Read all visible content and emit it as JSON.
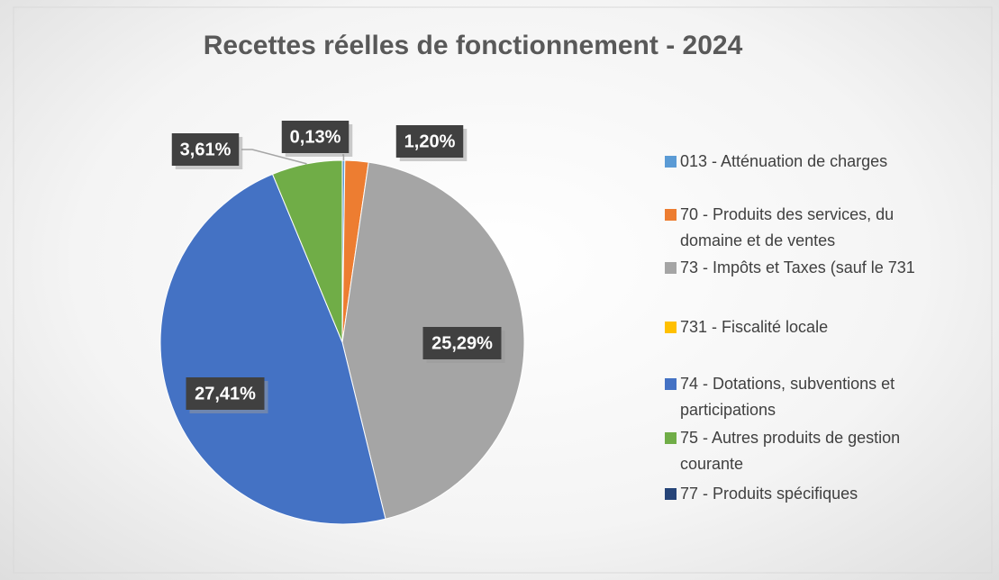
{
  "chart_data": {
    "type": "pie",
    "title": "Recettes réelles de fonctionnement - 2024",
    "categories": [
      "013 - Atténuation de charges",
      "70 - Produits des services, du domaine et de ventes",
      "73 - Impôts et Taxes (sauf le 731",
      "731 - Fiscalité locale",
      "74 - Dotations, subventions et participations",
      "75 - Autres produits de gestion courante",
      "77 - Produits spécifiques"
    ],
    "values": [
      0.13,
      1.2,
      25.29,
      null,
      27.41,
      3.61,
      null
    ],
    "value_labels": [
      "0,13%",
      "1,20%",
      "25,29%",
      null,
      "27,41%",
      "3,61%",
      null
    ],
    "colors": [
      "#5b9bd5",
      "#ed7d31",
      "#a5a5a5",
      "#ffc000",
      "#4472c4",
      "#70ad47",
      "#264478"
    ],
    "legend": "right"
  }
}
